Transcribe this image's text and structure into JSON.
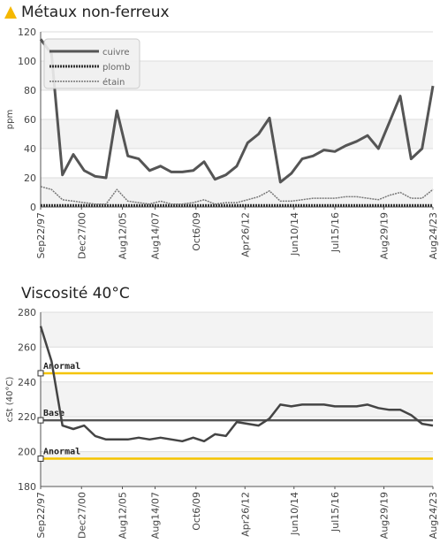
{
  "charts_ui": {
    "warning_color": "#f5b800",
    "title1": "Métaux non-ferreux",
    "title2": "Viscosité 40°C"
  },
  "chart_data": [
    {
      "type": "line",
      "title": "Métaux non-ferreux",
      "ylabel": "ppm",
      "ylim": [
        0,
        120
      ],
      "yticks": [
        0,
        20,
        40,
        60,
        80,
        100,
        120
      ],
      "grid": true,
      "legend_position": "top-left",
      "x_labels": [
        "Sep22/97",
        "Dec27/00",
        "Aug12/05",
        "Aug14/07",
        "Oct6/09",
        "Apr26/12",
        "Jun10/14",
        "Jul15/16",
        "Aug29/19",
        "Aug24/23"
      ],
      "x_label_index": [
        0,
        5,
        10,
        14,
        19,
        25,
        31,
        36,
        42,
        48
      ],
      "series": [
        {
          "name": "cuivre",
          "color": "#555555",
          "values": [
            115,
            105,
            22,
            36,
            25,
            21,
            20,
            66,
            35,
            33,
            25,
            28,
            24,
            24,
            25,
            31,
            19,
            22,
            28,
            44,
            50,
            61,
            17,
            23,
            33,
            35,
            39,
            38,
            42,
            45,
            49,
            40,
            58,
            76,
            33,
            40,
            83
          ]
        },
        {
          "name": "plomb",
          "color": "#333333",
          "values": [
            1,
            1,
            1,
            1,
            1,
            1,
            1,
            1,
            1,
            1,
            1,
            1,
            1,
            1,
            1,
            1,
            1,
            1,
            1,
            1,
            1,
            1,
            1,
            1,
            1,
            1,
            1,
            1,
            1,
            1,
            1,
            1,
            1,
            1,
            1,
            1,
            1
          ]
        },
        {
          "name": "étain",
          "color": "#777777",
          "values": [
            14,
            12,
            5,
            4,
            3,
            2,
            2,
            12,
            4,
            3,
            2,
            4,
            2,
            2,
            3,
            5,
            2,
            3,
            3,
            5,
            7,
            11,
            4,
            4,
            5,
            6,
            6,
            6,
            7,
            7,
            6,
            5,
            8,
            10,
            6,
            6,
            12
          ]
        }
      ]
    },
    {
      "type": "line",
      "title": "Viscosité 40°C",
      "ylabel": "cSt (40°C)",
      "ylim": [
        180,
        280
      ],
      "yticks": [
        180,
        200,
        220,
        240,
        260,
        280
      ],
      "grid": true,
      "x_labels": [
        "Sep22/97",
        "Dec27/00",
        "Aug12/05",
        "Aug14/07",
        "Oct6/09",
        "Apr26/12",
        "Jun10/14",
        "Jul15/16",
        "Aug29/19",
        "Aug24/23"
      ],
      "x_label_index": [
        0,
        5,
        10,
        14,
        19,
        25,
        31,
        36,
        42,
        48
      ],
      "reference_lines": [
        {
          "label": "Anormal",
          "value": 245,
          "color": "#f5c400"
        },
        {
          "label": "Base",
          "value": 218,
          "color": "#555555"
        },
        {
          "label": "Anormal",
          "value": 196,
          "color": "#f5c400"
        }
      ],
      "series": [
        {
          "color": "#444444",
          "values": [
            272,
            252,
            215,
            213,
            215,
            209,
            207,
            207,
            207,
            208,
            207,
            208,
            207,
            206,
            208,
            206,
            210,
            209,
            217,
            216,
            215,
            219,
            227,
            226,
            227,
            227,
            227,
            226,
            226,
            226,
            227,
            225,
            224,
            224,
            221,
            216,
            215
          ]
        }
      ]
    }
  ]
}
